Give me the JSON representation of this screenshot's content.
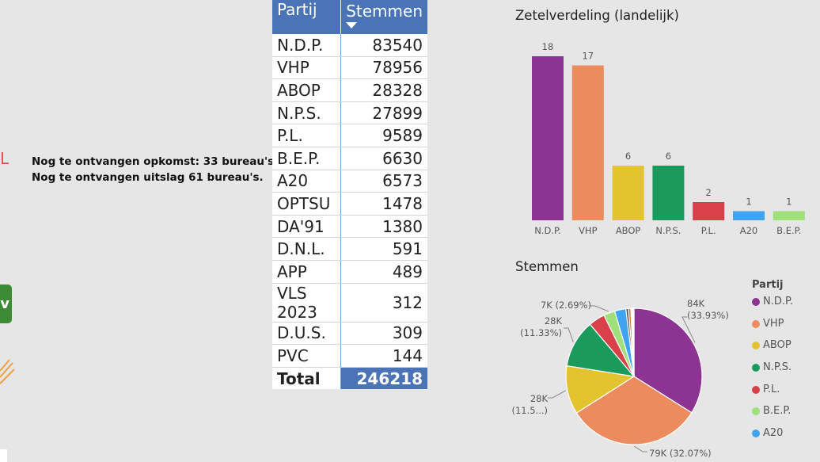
{
  "left_panel": {
    "partial_letter": "L",
    "note_line1": "Nog te ontvangen opkomst: 33 bureau's.",
    "note_line2": "Nog te ontvangen uitslag 61 bureau's.",
    "green_button_label": "v",
    "green_color": "#3d8b37"
  },
  "table": {
    "col_party": "Partij",
    "col_votes": "Stemmen",
    "rows": [
      {
        "party": "N.D.P.",
        "votes": "83540"
      },
      {
        "party": "VHP",
        "votes": "78956"
      },
      {
        "party": "ABOP",
        "votes": "28328"
      },
      {
        "party": "N.P.S.",
        "votes": "27899"
      },
      {
        "party": "P.L.",
        "votes": "9589"
      },
      {
        "party": "B.E.P.",
        "votes": "6630"
      },
      {
        "party": "A20",
        "votes": "6573"
      },
      {
        "party": "OPTSU",
        "votes": "1478"
      },
      {
        "party": "DA'91",
        "votes": "1380"
      },
      {
        "party": "D.N.L.",
        "votes": "591"
      },
      {
        "party": "APP",
        "votes": "489"
      },
      {
        "party": "VLS 2023",
        "votes": "312"
      },
      {
        "party": "D.U.S.",
        "votes": "309"
      },
      {
        "party": "PVC",
        "votes": "144"
      }
    ],
    "total_label": "Total",
    "total_value": "246218",
    "header_color": "#4a74b5"
  },
  "bar_title": "Zetelverdeling (landelijk)",
  "pie_title": "Stemmen",
  "legend": {
    "title": "Partij",
    "items": [
      "N.D.P.",
      "VHP",
      "ABOP",
      "N.P.S.",
      "P.L.",
      "B.E.P.",
      "A20"
    ]
  },
  "chart_data": [
    {
      "type": "bar",
      "title": "Zetelverdeling (landelijk)",
      "categories": [
        "N.D.P.",
        "VHP",
        "ABOP",
        "N.P.S.",
        "P.L.",
        "A20",
        "B.E.P."
      ],
      "values": [
        18,
        17,
        6,
        6,
        2,
        1,
        1
      ],
      "colors": [
        "#8b3491",
        "#ec8b5e",
        "#e3c32f",
        "#1a9b5d",
        "#d9404a",
        "#3fa3ef",
        "#9fe07a"
      ],
      "ylim": [
        0,
        18
      ],
      "grid": false
    },
    {
      "type": "pie",
      "title": "Stemmen",
      "labels": [
        "N.D.P.",
        "VHP",
        "ABOP",
        "N.P.S.",
        "P.L.",
        "B.E.P.",
        "A20",
        "OPTSU",
        "DA'91",
        "D.N.L.",
        "APP",
        "VLS 2023",
        "D.U.S.",
        "PVC"
      ],
      "values": [
        83540,
        78956,
        28328,
        27899,
        9589,
        6630,
        6573,
        1478,
        1380,
        591,
        489,
        312,
        309,
        144
      ],
      "colors": [
        "#8b3491",
        "#ec8b5e",
        "#e3c32f",
        "#1a9b5d",
        "#d9404a",
        "#9fe07a",
        "#3fa3ef",
        "#555555",
        "#c47a3a",
        "#e87cc0",
        "#555555",
        "#8c564b",
        "#777777",
        "#aaaaaa"
      ],
      "slice_labels": [
        {
          "index": 0,
          "line1": "84K",
          "line2": "(33.93%)"
        },
        {
          "index": 1,
          "line1": "79K (32.07%)",
          "line2": ""
        },
        {
          "index": 2,
          "line1": "28K",
          "line2": "(11.5...)"
        },
        {
          "index": 3,
          "line1": "28K",
          "line2": "(11.33%)"
        },
        {
          "index": 5,
          "line1": "7K (2.69%)",
          "line2": ""
        }
      ],
      "legend_position": "right"
    }
  ]
}
